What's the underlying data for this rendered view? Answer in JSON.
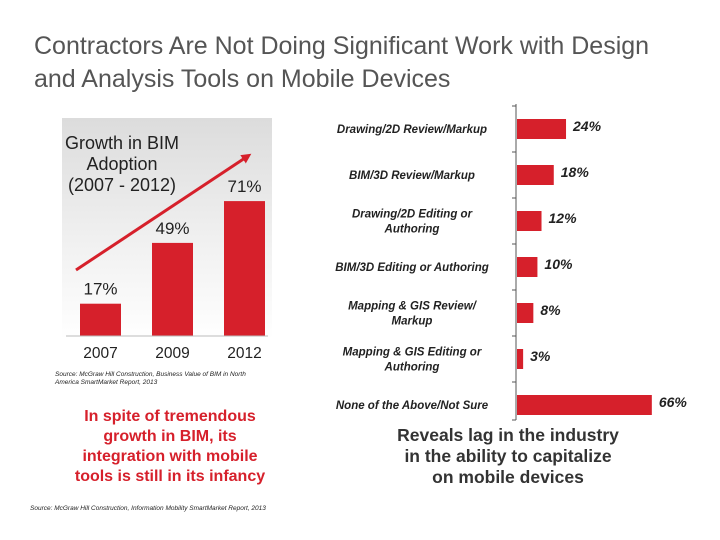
{
  "title_lines": [
    "Contractors Are Not Doing Significant Work with Design",
    "and Analysis Tools on Mobile Devices"
  ],
  "chart_data": [
    {
      "type": "bar",
      "orientation": "vertical",
      "title_lines": [
        "Growth in BIM",
        "Adoption",
        "(2007 - 2012)"
      ],
      "categories": [
        "2007",
        "2009",
        "2012"
      ],
      "values": [
        17,
        49,
        71
      ],
      "value_labels": [
        "17%",
        "49%",
        "71%"
      ],
      "unit": "%",
      "ylim": [
        0,
        100
      ],
      "grid": false,
      "trend_arrow": true,
      "bar_color": "#d6202b",
      "source": "Source: McGraw Hill Construction, Business Value of BIM in North America SmartMarket Report, 2013"
    },
    {
      "type": "bar",
      "orientation": "horizontal",
      "categories": [
        [
          "Drawing/2D Review/Markup"
        ],
        [
          "BIM/3D Review/Markup"
        ],
        [
          "Drawing/2D Editing or",
          "Authoring"
        ],
        [
          "BIM/3D Editing or Authoring"
        ],
        [
          "Mapping & GIS Review/",
          "Markup"
        ],
        [
          "Mapping & GIS Editing or",
          "Authoring"
        ],
        [
          "None of the Above/Not Sure"
        ]
      ],
      "values": [
        24,
        18,
        12,
        10,
        8,
        3,
        66
      ],
      "value_labels": [
        "24%",
        "18%",
        "12%",
        "10%",
        "8%",
        "3%",
        "66%"
      ],
      "unit": "%",
      "xlim": [
        0,
        70
      ],
      "grid": false,
      "bar_color": "#d6202b"
    }
  ],
  "callout_lines": [
    "In spite of tremendous",
    "growth in BIM, its",
    "integration with mobile",
    "tools is still in its infancy"
  ],
  "reveals_lines": [
    "Reveals lag in the industry",
    "in the ability to capitalize",
    "on mobile devices"
  ],
  "footer_source": "Source: McGraw Hill Construction, Information Mobility SmartMarket Report, 2013",
  "colors": {
    "accent": "#d6202b",
    "title": "#555555",
    "arrow": "#d6202b"
  }
}
